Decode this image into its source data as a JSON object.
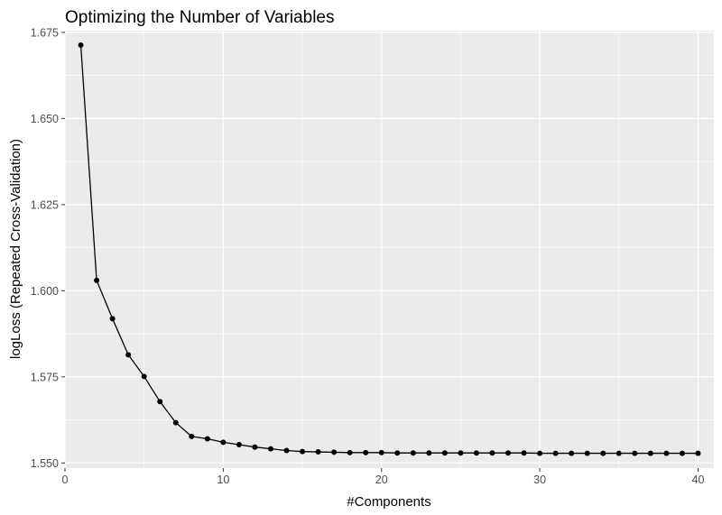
{
  "chart_data": {
    "type": "line",
    "title": "Optimizing the Number of Variables",
    "xlabel": "#Components",
    "ylabel": "logLoss (Repeated Cross-Validation)",
    "xlim": [
      0,
      41
    ],
    "ylim": [
      1.5485,
      1.6755
    ],
    "x_ticks": [
      0,
      10,
      20,
      30,
      40
    ],
    "x_tick_labels": [
      "0",
      "10",
      "20",
      "30",
      "40"
    ],
    "y_ticks": [
      1.55,
      1.575,
      1.6,
      1.625,
      1.65,
      1.675
    ],
    "y_tick_labels": [
      "1.550",
      "1.575",
      "1.600",
      "1.625",
      "1.650",
      "1.675"
    ],
    "grid": true,
    "panel_background": "#ebebeb",
    "grid_color": "#ffffff",
    "line_color": "#000000",
    "point_color": "#000000",
    "series": [
      {
        "x": [
          1,
          2,
          3,
          4,
          5,
          6,
          7,
          8,
          9,
          10,
          11,
          12,
          13,
          14,
          15,
          16,
          17,
          18,
          19,
          20,
          21,
          22,
          23,
          24,
          25,
          26,
          27,
          28,
          29,
          30,
          31,
          32,
          33,
          34,
          35,
          36,
          37,
          38,
          39,
          40
        ],
        "values": [
          1.6713,
          1.603,
          1.5919,
          1.5814,
          1.5751,
          1.5678,
          1.5617,
          1.5577,
          1.557,
          1.556,
          1.5553,
          1.5546,
          1.5541,
          1.5536,
          1.5533,
          1.5532,
          1.5531,
          1.553,
          1.553,
          1.553,
          1.5529,
          1.5529,
          1.5529,
          1.5529,
          1.5529,
          1.5529,
          1.5529,
          1.5529,
          1.5529,
          1.5528,
          1.5528,
          1.5528,
          1.5528,
          1.5528,
          1.5528,
          1.5528,
          1.5528,
          1.5528,
          1.5528,
          1.5528
        ]
      }
    ]
  }
}
